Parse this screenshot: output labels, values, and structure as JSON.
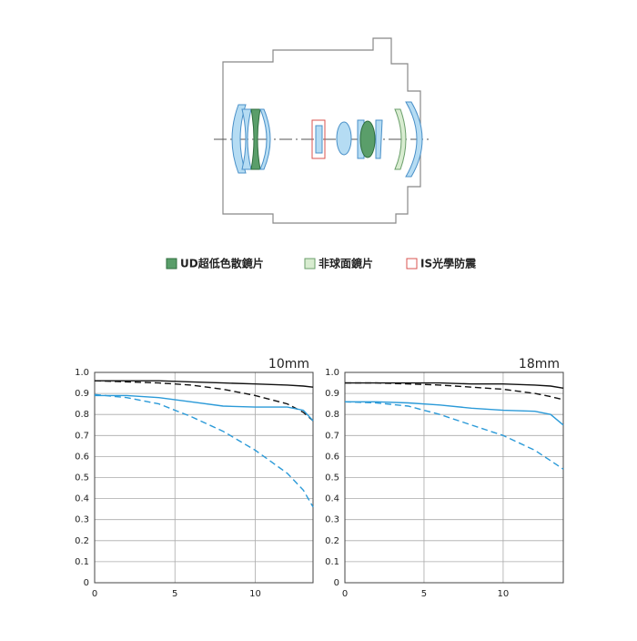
{
  "legend": [
    {
      "label": "UD超低色散鏡片",
      "color": "#5a9e6a"
    },
    {
      "label": "非球面鏡片",
      "color": "#d8ecd0"
    },
    {
      "label": "IS光學防震",
      "color": "#d9534f"
    }
  ],
  "chart_data": [
    {
      "type": "line",
      "title": "10mm",
      "x": [
        0,
        2,
        4,
        6,
        8,
        10,
        12,
        13,
        13.6
      ],
      "xlim": [
        0,
        13.6
      ],
      "xticks": [
        0,
        5,
        10
      ],
      "ylim": [
        0,
        1
      ],
      "yticks": [
        0,
        0.1,
        0.2,
        0.3,
        0.4,
        0.5,
        0.6,
        0.7,
        0.8,
        0.9,
        {
          "value": 1,
          "label": "1.0"
        }
      ],
      "grid": true,
      "series": [
        {
          "color": "#111111",
          "style": "solid",
          "values": [
            0.96,
            0.96,
            0.96,
            0.955,
            0.95,
            0.945,
            0.94,
            0.935,
            0.93
          ]
        },
        {
          "color": "#111111",
          "style": "dashed",
          "values": [
            0.96,
            0.955,
            0.95,
            0.94,
            0.92,
            0.89,
            0.85,
            0.81,
            0.77
          ]
        },
        {
          "color": "#2b9ad8",
          "style": "solid",
          "values": [
            0.89,
            0.89,
            0.88,
            0.86,
            0.84,
            0.835,
            0.835,
            0.82,
            0.77
          ]
        },
        {
          "color": "#2b9ad8",
          "style": "dashed",
          "values": [
            0.895,
            0.88,
            0.85,
            0.79,
            0.72,
            0.63,
            0.52,
            0.44,
            0.36
          ]
        }
      ]
    },
    {
      "type": "line",
      "title": "18mm",
      "x": [
        0,
        2,
        4,
        6,
        8,
        10,
        12,
        13,
        13.8
      ],
      "xlim": [
        0,
        13.8
      ],
      "xticks": [
        0,
        5,
        10
      ],
      "ylim": [
        0,
        1
      ],
      "yticks": [
        0,
        0.1,
        0.2,
        0.3,
        0.4,
        0.5,
        0.6,
        0.7,
        0.8,
        0.9,
        {
          "value": 1,
          "label": "1.0"
        }
      ],
      "grid": true,
      "series": [
        {
          "color": "#111111",
          "style": "solid",
          "values": [
            0.95,
            0.95,
            0.95,
            0.95,
            0.945,
            0.945,
            0.94,
            0.935,
            0.925
          ]
        },
        {
          "color": "#111111",
          "style": "dashed",
          "values": [
            0.95,
            0.95,
            0.945,
            0.94,
            0.93,
            0.92,
            0.9,
            0.885,
            0.87
          ]
        },
        {
          "color": "#2b9ad8",
          "style": "solid",
          "values": [
            0.86,
            0.86,
            0.855,
            0.845,
            0.83,
            0.82,
            0.815,
            0.8,
            0.75
          ]
        },
        {
          "color": "#2b9ad8",
          "style": "dashed",
          "values": [
            0.86,
            0.855,
            0.84,
            0.8,
            0.75,
            0.7,
            0.63,
            0.58,
            0.54
          ]
        }
      ]
    }
  ]
}
